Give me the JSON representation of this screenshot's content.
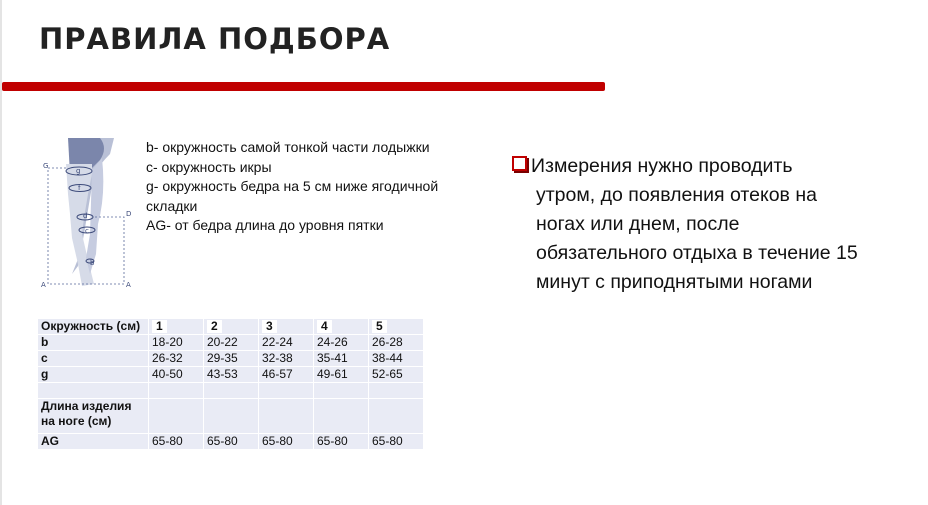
{
  "title": "ПРАВИЛА ПОДБОРА",
  "colors": {
    "accent": "#c00000",
    "table_bg": "#e9ebf5"
  },
  "diagram_labels": [
    "G",
    "g",
    "f",
    "d",
    "D",
    "c",
    "b",
    "A",
    "A"
  ],
  "legend": [
    "b- окружность самой тонкой части лодыжки",
    "c- окружность икры",
    "g- окружность бедра на 5 см ниже ягодичной складки",
    "AG- от бедра длина до уровня пятки"
  ],
  "table": {
    "header": {
      "label": "Окружность (см)",
      "sizes": [
        "1",
        "2",
        "3",
        "4",
        "5"
      ]
    },
    "rows": [
      {
        "label": "b",
        "values": [
          "18-20",
          "20-22",
          "22-24",
          "24-26",
          "26-28"
        ]
      },
      {
        "label": "c",
        "values": [
          "26-32",
          "29-35",
          "32-38",
          "35-41",
          "38-44"
        ]
      },
      {
        "label": "g",
        "values": [
          "40-50",
          "43-53",
          "46-57",
          "49-61",
          "52-65"
        ]
      },
      {
        "label": "",
        "values": [
          "",
          "",
          "",
          "",
          ""
        ]
      },
      {
        "label": "Длина изделия на ноге (см)",
        "values": [
          "",
          "",
          "",
          "",
          ""
        ]
      },
      {
        "label": "AG",
        "values": [
          "65-80",
          "65-80",
          "65-80",
          "65-80",
          "65-80"
        ]
      }
    ]
  },
  "note": {
    "icon": "checkbox-bullet-icon",
    "lines": [
      "Измерения нужно проводить",
      "утром, до появления отеков на",
      "ногах или днем, после",
      "обязательного отдыха в течение 15",
      "минут с приподнятыми ногами"
    ]
  }
}
